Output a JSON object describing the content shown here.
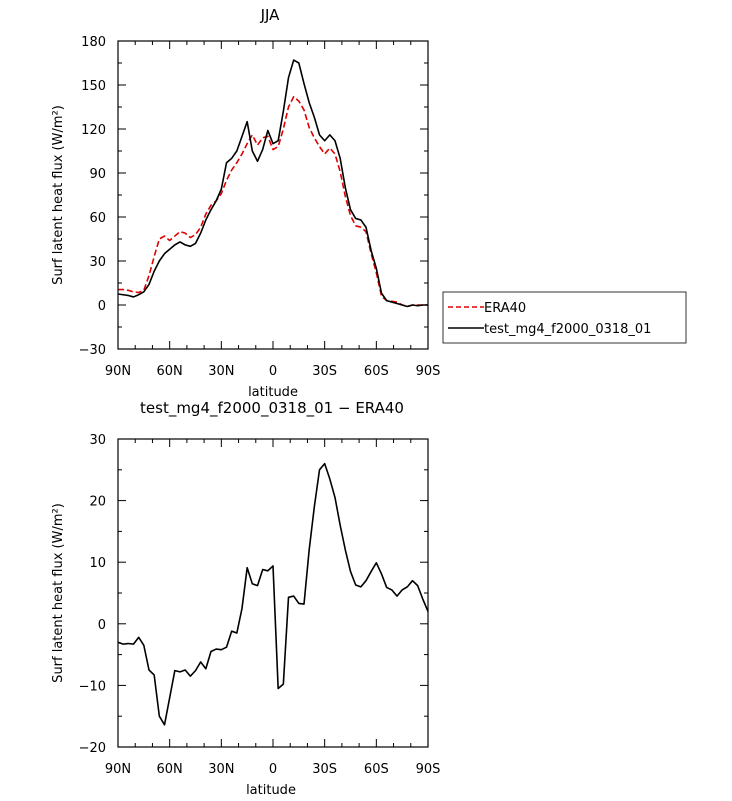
{
  "chart_data": [
    {
      "type": "line",
      "title": "JJA",
      "xlabel": "latitude",
      "ylabel": "Surf latent heat flux (W/m²)",
      "xlim": [
        90,
        -90
      ],
      "ylim": [
        -30,
        180
      ],
      "x_ticks": [
        90,
        60,
        30,
        0,
        -30,
        -60,
        -90
      ],
      "x_tick_labels": [
        "90N",
        "60N",
        "30N",
        "0",
        "30S",
        "60S",
        "90S"
      ],
      "y_ticks": [
        -30,
        0,
        30,
        60,
        90,
        120,
        150,
        180
      ],
      "y_tick_labels": [
        "−30",
        "0",
        "30",
        "60",
        "90",
        "120",
        "150",
        "180"
      ],
      "grid": false,
      "legend_position": "right",
      "x": [
        90,
        87,
        84,
        81,
        78,
        75,
        72,
        69,
        66,
        63,
        60,
        57,
        54,
        51,
        48,
        45,
        42,
        39,
        36,
        33,
        30,
        27,
        24,
        21,
        18,
        15,
        12,
        9,
        6,
        3,
        0,
        -3,
        -6,
        -9,
        -12,
        -15,
        -18,
        -21,
        -24,
        -27,
        -30,
        -33,
        -36,
        -39,
        -42,
        -45,
        -48,
        -51,
        -54,
        -57,
        -60,
        -63,
        -66,
        -69,
        -72,
        -75,
        -78,
        -81,
        -84,
        -87,
        -90
      ],
      "series": [
        {
          "name": "ERA40",
          "color": "#e00000",
          "dash": "dashed",
          "values": [
            10.5,
            10.5,
            10,
            9,
            8.5,
            10,
            20,
            33,
            45,
            47,
            44,
            47,
            50,
            49,
            46,
            48,
            53,
            62,
            68,
            71,
            76,
            85,
            92,
            97,
            103,
            110,
            116,
            109,
            114,
            115,
            106,
            108,
            120,
            135,
            142,
            139,
            133,
            121,
            114,
            108,
            103,
            107,
            103,
            91,
            74,
            61,
            54,
            53,
            50,
            35,
            22,
            6,
            3,
            2.5,
            2,
            0,
            -1,
            0,
            0,
            0,
            0
          ]
        },
        {
          "name": "test_mg4_f2000_0318_01",
          "color": "#000000",
          "dash": "solid",
          "values": [
            7.5,
            7,
            6.5,
            5.5,
            7,
            9,
            14,
            23,
            30,
            35,
            38,
            41,
            43,
            41,
            40,
            42,
            49,
            58,
            65,
            71,
            79,
            97,
            100,
            105,
            115,
            125,
            105,
            98,
            106,
            119,
            110,
            112,
            132,
            155,
            167,
            165,
            151,
            138,
            128,
            116,
            112,
            116,
            112,
            100,
            80,
            65,
            59,
            58,
            53,
            37,
            25,
            8,
            3,
            2,
            1,
            0,
            -1,
            0,
            -0.5,
            0,
            0
          ]
        }
      ]
    },
    {
      "type": "line",
      "title": "test_mg4_f2000_0318_01 − ERA40",
      "xlabel": "latitude",
      "ylabel": "Surf latent heat flux (W/m²)",
      "xlim": [
        90,
        -90
      ],
      "ylim": [
        -20,
        30
      ],
      "x_ticks": [
        90,
        60,
        30,
        0,
        -30,
        -60,
        -90
      ],
      "x_tick_labels": [
        "90N",
        "60N",
        "30N",
        "0",
        "30S",
        "60S",
        "90S"
      ],
      "y_ticks": [
        -20,
        -10,
        0,
        10,
        20,
        30
      ],
      "y_tick_labels": [
        "−20",
        "−10",
        "0",
        "10",
        "20",
        "30"
      ],
      "grid": false,
      "x": [
        90,
        87,
        84,
        81,
        78,
        75,
        72,
        69,
        66,
        63,
        60,
        57,
        54,
        51,
        48,
        45,
        42,
        39,
        36,
        33,
        30,
        27,
        24,
        21,
        18,
        15,
        12,
        9,
        6,
        3,
        0,
        -3,
        -6,
        -9,
        -12,
        -15,
        -18,
        -21,
        -24,
        -27,
        -30,
        -33,
        -36,
        -39,
        -42,
        -45,
        -48,
        -51,
        -54,
        -57,
        -60,
        -63,
        -66,
        -69,
        -72,
        -75,
        -78,
        -81,
        -84,
        -87,
        -90
      ],
      "series": [
        {
          "color": "#000000",
          "values": [
            -3,
            -3.3,
            -3.2,
            -3.3,
            -2.2,
            -3.5,
            -7.5,
            -8.3,
            -15,
            -16.4,
            -12,
            -7.6,
            -7.8,
            -7.5,
            -8.5,
            -7.6,
            -6.2,
            -7.3,
            -4.5,
            -4.1,
            -4.2,
            -3.8,
            -1.2,
            -1.5,
            2.5,
            9.1,
            6.5,
            6.2,
            8.8,
            8.6,
            9.4,
            -10.5,
            -9.8,
            4.3,
            4.5,
            3.3,
            3.2,
            12,
            19,
            25,
            26,
            23.5,
            20.5,
            16,
            12,
            8.5,
            6.3,
            6,
            7,
            8.5,
            9.9,
            8.1,
            5.9,
            5.5,
            4.5,
            5.5,
            6,
            7,
            6.2,
            4,
            2
          ]
        }
      ]
    }
  ]
}
